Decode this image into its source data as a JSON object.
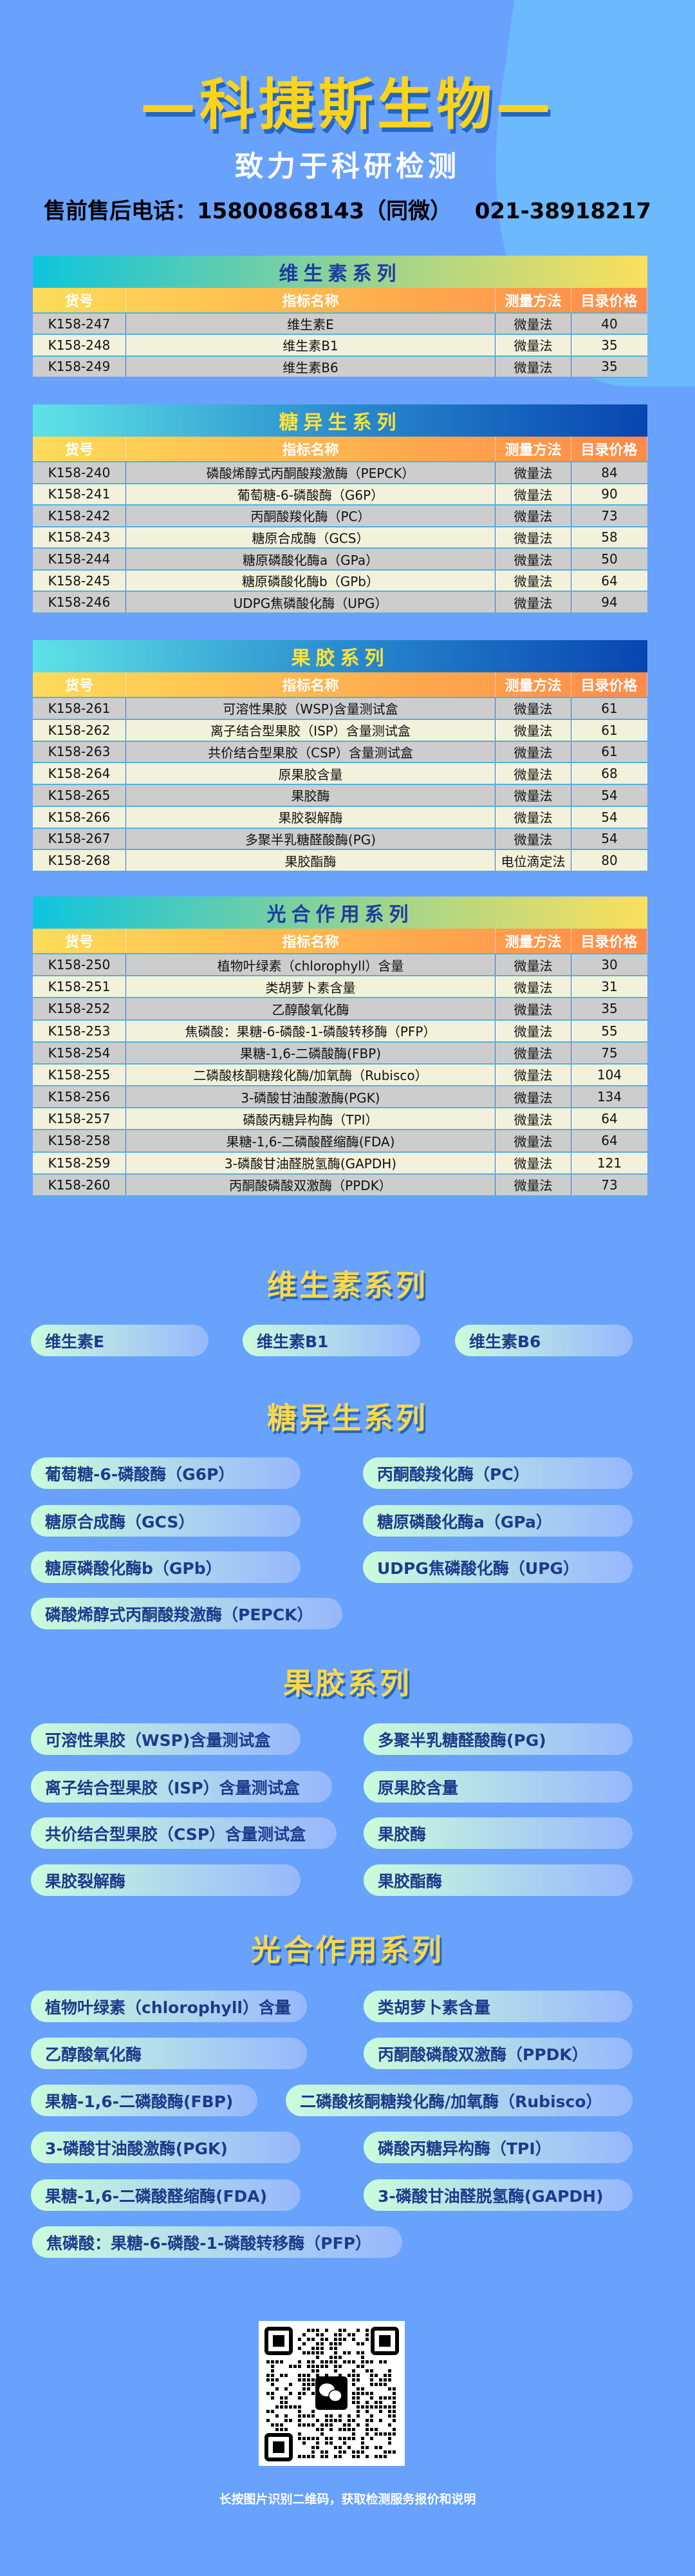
{
  "header": {
    "brand": "—科捷斯生物—",
    "subtitle": "致力于科研检测",
    "phone": "售前售后电话：15800868143（同微）   021-38918217"
  },
  "columns": [
    "货号",
    "指标名称",
    "测量方法",
    "目录价格"
  ],
  "tables": [
    {
      "title": "维生素系列",
      "style": "g1",
      "rows": [
        [
          "K158-247",
          "维生素E",
          "微量法",
          "40"
        ],
        [
          "K158-248",
          "维生素B1",
          "微量法",
          "35"
        ],
        [
          "K158-249",
          "维生素B6",
          "微量法",
          "35"
        ]
      ]
    },
    {
      "title": "糖异生系列",
      "style": "g2",
      "rows": [
        [
          "K158-240",
          "磷酸烯醇式丙酮酸羧激酶（PEPCK）",
          "微量法",
          "84"
        ],
        [
          "K158-241",
          "葡萄糖-6-磷酸酶（G6P）",
          "微量法",
          "90"
        ],
        [
          "K158-242",
          "丙酮酸羧化酶（PC）",
          "微量法",
          "73"
        ],
        [
          "K158-243",
          "糖原合成酶（GCS）",
          "微量法",
          "58"
        ],
        [
          "K158-244",
          "糖原磷酸化酶a（GPa）",
          "微量法",
          "50"
        ],
        [
          "K158-245",
          "糖原磷酸化酶b（GPb）",
          "微量法",
          "64"
        ],
        [
          "K158-246",
          "UDPG焦磷酸化酶（UPG）",
          "微量法",
          "94"
        ]
      ]
    },
    {
      "title": "果胶系列",
      "style": "g2",
      "rows": [
        [
          "K158-261",
          "可溶性果胶（WSP)含量测试盒",
          "微量法",
          "61"
        ],
        [
          "K158-262",
          "离子结合型果胶（ISP）含量测试盒",
          "微量法",
          "61"
        ],
        [
          "K158-263",
          "共价结合型果胶（CSP）含量测试盒",
          "微量法",
          "61"
        ],
        [
          "K158-264",
          "原果胶含量",
          "微量法",
          "68"
        ],
        [
          "K158-265",
          "果胶酶",
          "微量法",
          "54"
        ],
        [
          "K158-266",
          "果胶裂解酶",
          "微量法",
          "54"
        ],
        [
          "K158-267",
          "多聚半乳糖醛酸酶(PG)",
          "微量法",
          "54"
        ],
        [
          "K158-268",
          "果胶酯酶",
          "电位滴定法",
          "80"
        ]
      ]
    },
    {
      "title": "光合作用系列",
      "style": "g1",
      "rows": [
        [
          "K158-250",
          "植物叶绿素（chlorophyll）含量",
          "微量法",
          "30"
        ],
        [
          "K158-251",
          "类胡萝卜素含量",
          "微量法",
          "31"
        ],
        [
          "K158-252",
          "乙醇酸氧化酶",
          "微量法",
          "35"
        ],
        [
          "K158-253",
          "焦磷酸：果糖-6-磷酸-1-磷酸转移酶（PFP）",
          "微量法",
          "55"
        ],
        [
          "K158-254",
          "果糖-1,6-二磷酸酶(FBP)",
          "微量法",
          "75"
        ],
        [
          "K158-255",
          "二磷酸核酮糖羧化酶/加氧酶（Rubisco）",
          "微量法",
          "104"
        ],
        [
          "K158-256",
          "3-磷酸甘油酸激酶(PGK)",
          "微量法",
          "134"
        ],
        [
          "K158-257",
          "磷酸丙糖异构酶（TPI）",
          "微量法",
          "64"
        ],
        [
          "K158-258",
          "果糖-1,6-二磷酸醛缩酶(FDA)",
          "微量法",
          "64"
        ],
        [
          "K158-259",
          "3-磷酸甘油醛脱氢酶(GAPDH)",
          "微量法",
          "121"
        ],
        [
          "K158-260",
          "丙酮酸磷酸双激酶（PPDK）",
          "微量法",
          "73"
        ]
      ]
    }
  ],
  "sections": [
    {
      "title": "维生素系列",
      "items": [
        "维生素E",
        "维生素B1",
        "维生素B6"
      ]
    },
    {
      "title": "糖异生系列",
      "items": [
        "葡萄糖-6-磷酸酶（G6P）",
        "丙酮酸羧化酶（PC）",
        "糖原合成酶（GCS）",
        "糖原磷酸化酶a（GPa）",
        "糖原磷酸化酶b（GPb）",
        "UDPG焦磷酸化酶（UPG）",
        "磷酸烯醇式丙酮酸羧激酶（PEPCK）"
      ]
    },
    {
      "title": "果胶系列",
      "items": [
        "可溶性果胶（WSP)含量测试盒",
        "多聚半乳糖醛酸酶(PG)",
        "离子结合型果胶（ISP）含量测试盒",
        "原果胶含量",
        "共价结合型果胶（CSP）含量测试盒",
        "果胶酶",
        "果胶裂解酶",
        "果胶酯酶"
      ]
    },
    {
      "title": "光合作用系列",
      "items": [
        "植物叶绿素（chlorophyll）含量",
        "类胡萝卜素含量",
        "乙醇酸氧化酶",
        "丙酮酸磷酸双激酶（PPDK）",
        "果糖-1,6-二磷酸酶(FBP)",
        "二磷酸核酮糖羧化酶/加氧酶（Rubisco）",
        "3-磷酸甘油酸激酶(PGK)",
        "磷酸丙糖异构酶（TPI）",
        "果糖-1,6-二磷酸醛缩酶(FDA)",
        "3-磷酸甘油醛脱氢酶(GAPDH)",
        "焦磷酸：果糖-6-磷酸-1-磷酸转移酶（PFP）"
      ]
    }
  ],
  "qr": {
    "icon": "wechat-icon"
  },
  "footer": "长按图片识别二维码，获取检测服务报价和说明"
}
